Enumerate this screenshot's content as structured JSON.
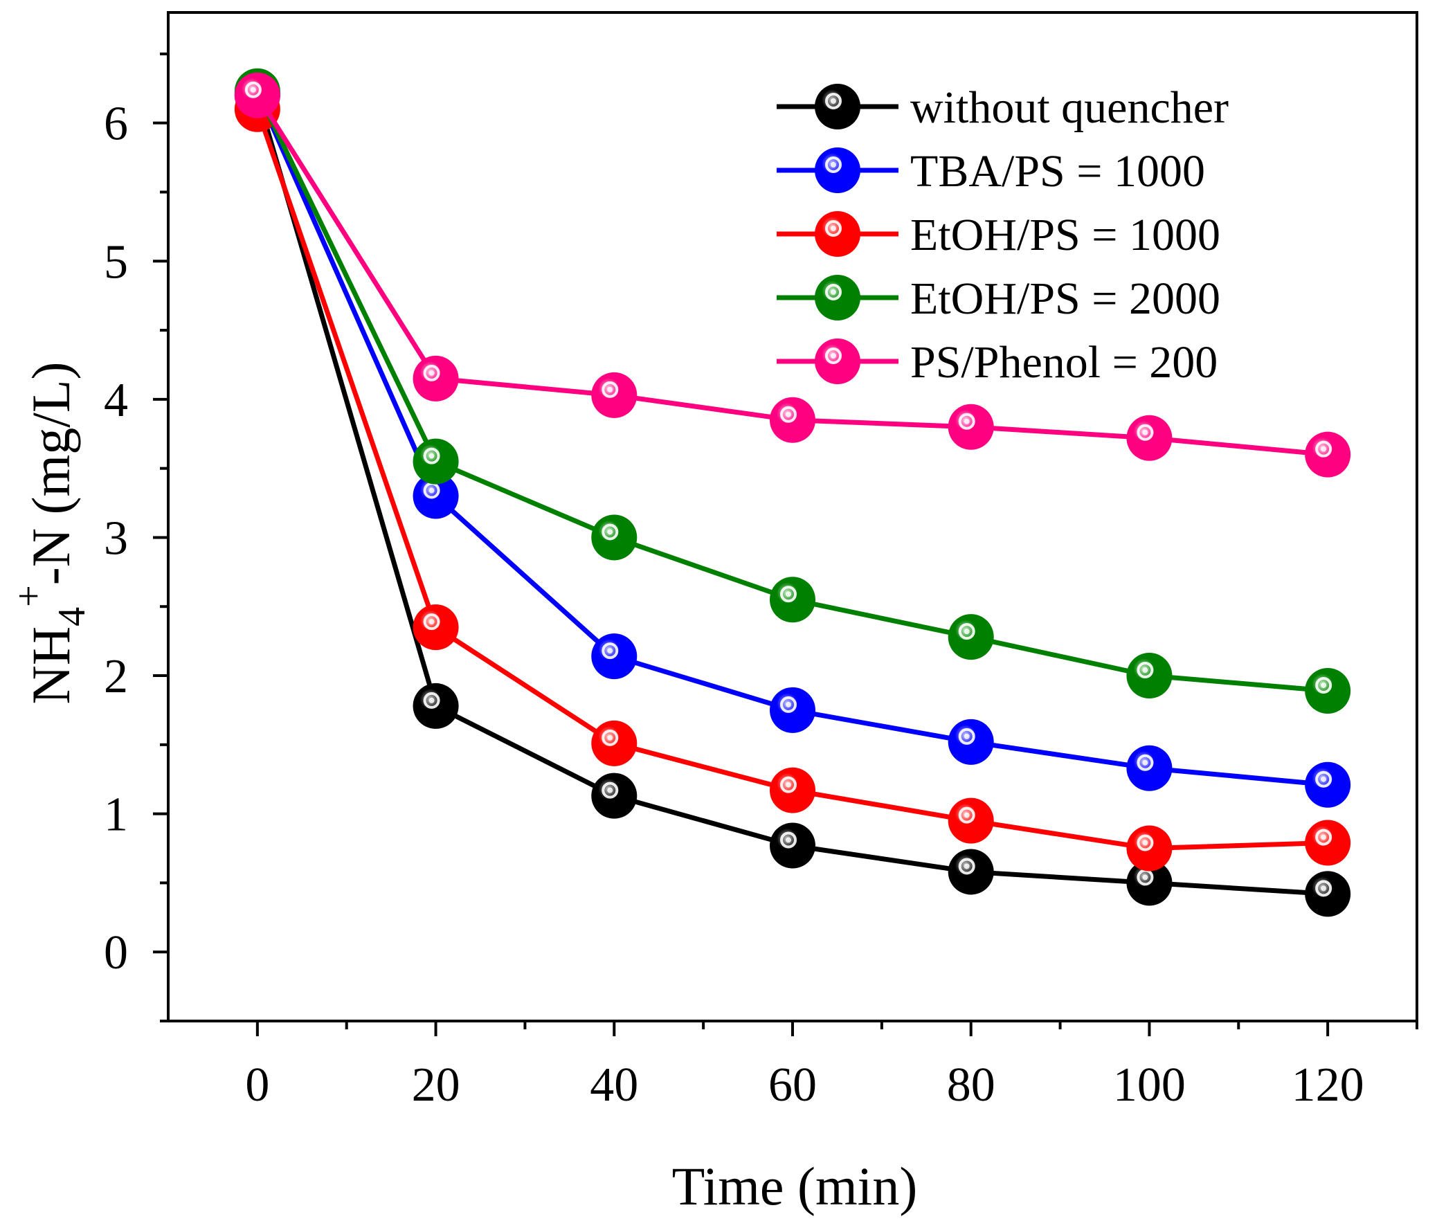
{
  "chart_data": {
    "type": "line",
    "title": "",
    "xlabel": "Time (min)",
    "ylabel_parts": {
      "main": "NH",
      "sub": "4",
      "sup": "+",
      "rest": "-N (mg/L)"
    },
    "xlim": [
      -10,
      130
    ],
    "ylim": [
      -0.5,
      6.8
    ],
    "x_ticks": [
      0,
      20,
      40,
      60,
      80,
      100,
      120
    ],
    "y_ticks": [
      0,
      1,
      2,
      3,
      4,
      5,
      6
    ],
    "x_tick_labels": [
      "0",
      "20",
      "40",
      "60",
      "80",
      "100",
      "120"
    ],
    "y_tick_labels": [
      "0",
      "1",
      "2",
      "3",
      "4",
      "5",
      "6"
    ],
    "grid": false,
    "legend_position": "top-right",
    "x": [
      0,
      20,
      40,
      60,
      80,
      100,
      120
    ],
    "series": [
      {
        "name": "without quencher",
        "color": "#000000",
        "highlight": "#c8c8c8",
        "values": [
          6.2,
          1.78,
          1.13,
          0.77,
          0.58,
          0.5,
          0.42
        ]
      },
      {
        "name": "TBA/PS = 1000",
        "color": "#0000ff",
        "highlight": "#c8c8ff",
        "values": [
          6.22,
          3.3,
          2.14,
          1.75,
          1.52,
          1.33,
          1.21
        ]
      },
      {
        "name": "EtOH/PS = 1000",
        "color": "#ff0000",
        "highlight": "#ffcccc",
        "values": [
          6.1,
          2.35,
          1.51,
          1.17,
          0.95,
          0.75,
          0.79
        ]
      },
      {
        "name": "EtOH/PS = 2000",
        "color": "#008000",
        "highlight": "#c8eec8",
        "values": [
          6.23,
          3.55,
          3.0,
          2.55,
          2.28,
          2.0,
          1.89
        ]
      },
      {
        "name": "PS/Phenol = 200",
        "color": "#ff0080",
        "highlight": "#ffd0e8",
        "values": [
          6.2,
          4.15,
          4.03,
          3.85,
          3.8,
          3.72,
          3.6
        ]
      }
    ]
  }
}
